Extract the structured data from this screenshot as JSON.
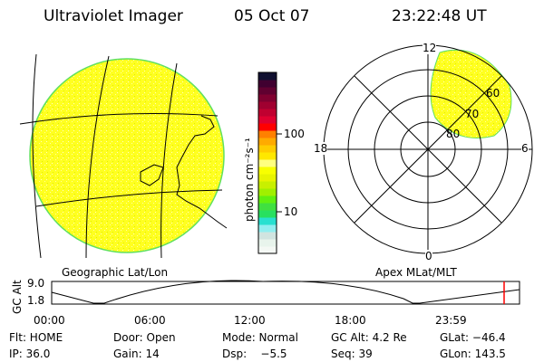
{
  "header": {
    "instrument": "Ultraviolet Imager",
    "date": "05 Oct 07",
    "time": "23:22:48 UT"
  },
  "colorbar": {
    "label": "photon cm⁻²s⁻¹",
    "ticks": [
      "100",
      "10"
    ],
    "colors": [
      "#f4f8f4",
      "#e8f4ec",
      "#d0e4e0",
      "#90eef0",
      "#28e0d0",
      "#28e060",
      "#40e040",
      "#60f010",
      "#a0f000",
      "#c8f000",
      "#e8f400",
      "#f8ff00",
      "#ffff80",
      "#ffe800",
      "#ffcc00",
      "#ffaa00",
      "#ff8000",
      "#ff0000",
      "#e00030",
      "#c00030",
      "#a00030",
      "#800030",
      "#600030",
      "#400030",
      "#101030"
    ]
  },
  "left_panel": {
    "caption": "Geographic Lat/Lon",
    "fill_color": "#ffff20"
  },
  "right_panel": {
    "caption": "Apex MLat/MLT",
    "mlt_labels": [
      "12",
      "18",
      "6",
      "0"
    ],
    "mlat_labels": [
      "60",
      "70",
      "80"
    ]
  },
  "altitude_plot": {
    "ylabel": "GC Alt",
    "yticks": [
      "9.0",
      "1.8"
    ],
    "xticks": [
      "00:00",
      "06:00",
      "12:00",
      "18:00",
      "23:59"
    ],
    "current_marker_color": "#ff0000"
  },
  "status": {
    "row1": [
      "Flt: HOME",
      "Door: Open",
      "Mode: Normal",
      "GC Alt: 4.2 Re",
      "GLat: −46.4"
    ],
    "row2": [
      "IP: 36.0",
      "Gain: 14",
      "Dsp:    −5.5",
      "Seq: 39",
      "GLon: 143.5"
    ]
  }
}
